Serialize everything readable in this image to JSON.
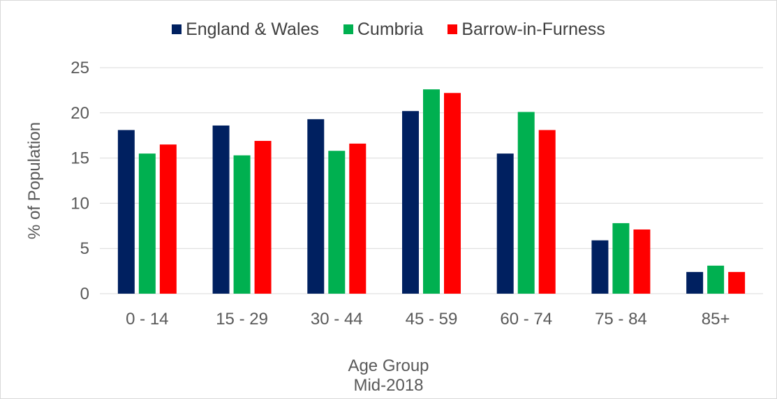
{
  "chart_data": {
    "type": "bar",
    "categories": [
      "0 - 14",
      "15 - 29",
      "30 - 44",
      "45 - 59",
      "60 - 74",
      "75 - 84",
      "85+"
    ],
    "series": [
      {
        "name": "England & Wales",
        "color": "#002060",
        "values": [
          18.1,
          18.6,
          19.3,
          20.2,
          15.5,
          5.9,
          2.4
        ]
      },
      {
        "name": "Cumbria",
        "color": "#00b050",
        "values": [
          15.5,
          15.3,
          15.8,
          22.6,
          20.1,
          7.8,
          3.1
        ]
      },
      {
        "name": "Barrow-in-Furness",
        "color": "#ff0000",
        "values": [
          16.5,
          16.9,
          16.6,
          22.2,
          18.1,
          7.1,
          2.4
        ]
      }
    ],
    "xlabel": "Age Group",
    "xlabel_sub": "Mid-2018",
    "ylabel": "% of Population",
    "ylim": [
      0,
      25
    ],
    "yticks": [
      "0",
      "5",
      "10",
      "15",
      "20",
      "25"
    ],
    "grid": true,
    "legend_position": "top"
  }
}
